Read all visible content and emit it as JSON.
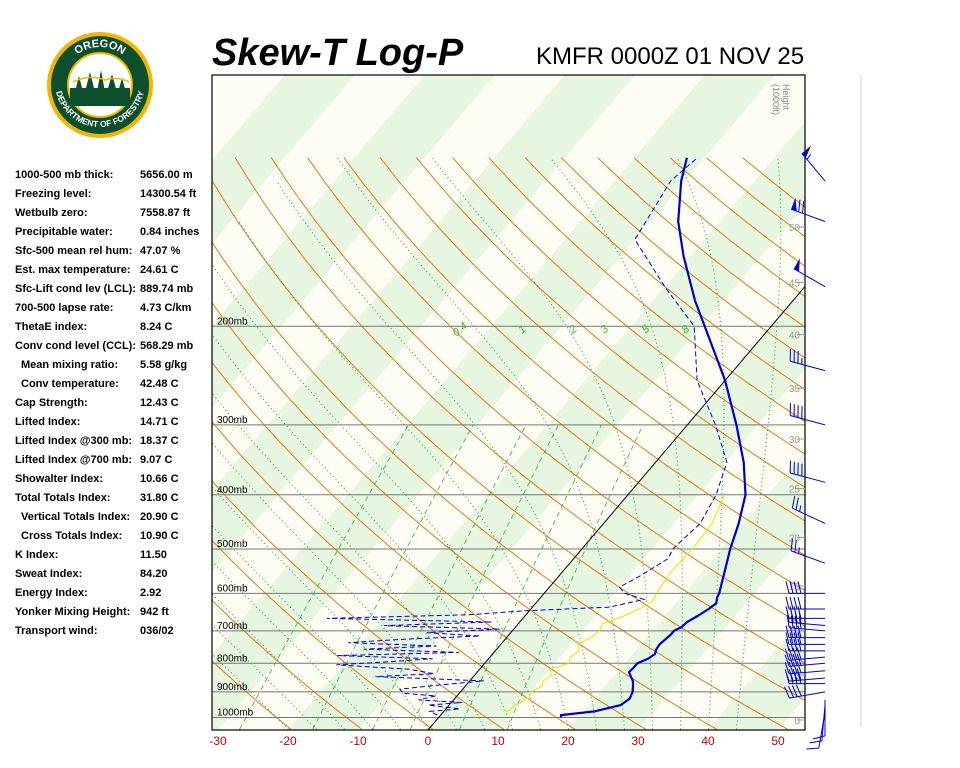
{
  "header": {
    "title": "Skew-T Log-P",
    "station_time": "KMFR 0000Z 01 NOV 25",
    "logo_text": [
      "OREGON",
      "DEPARTMENT OF FORESTRY"
    ]
  },
  "indices": [
    {
      "label": "1000-500 mb thick:",
      "value": "5656.00 m"
    },
    {
      "label": "Freezing level:",
      "value": "14300.54 ft"
    },
    {
      "label": "Wetbulb zero:",
      "value": "7558.87 ft"
    },
    {
      "label": "Precipitable water:",
      "value": "0.84 inches"
    },
    {
      "label": "Sfc-500 mean rel hum:",
      "value": "47.07 %"
    },
    {
      "label": "Est. max temperature:",
      "value": "24.61 C"
    },
    {
      "label": "Sfc-Lift cond lev (LCL):",
      "value": "889.74 mb"
    },
    {
      "label": "700-500 lapse rate:",
      "value": "4.73 C/km"
    },
    {
      "label": "ThetaE index:",
      "value": "8.24 C"
    },
    {
      "label": "Conv cond level (CCL):",
      "value": "568.29 mb"
    },
    {
      "label": "Mean mixing ratio:",
      "value": "5.58 g/kg",
      "indent": true
    },
    {
      "label": "Conv temperature:",
      "value": "42.48 C",
      "indent": true
    },
    {
      "label": "Cap Strength:",
      "value": "12.43 C"
    },
    {
      "label": "Lifted Index:",
      "value": "14.71 C"
    },
    {
      "label": "Lifted Index @300 mb:",
      "value": "18.37 C"
    },
    {
      "label": "Lifted Index @700 mb:",
      "value": "9.07 C"
    },
    {
      "label": "Showalter Index:",
      "value": "10.66 C"
    },
    {
      "label": "Total Totals Index:",
      "value": "31.80 C"
    },
    {
      "label": "Vertical Totals Index:",
      "value": "20.90 C",
      "indent": true
    },
    {
      "label": "Cross Totals Index:",
      "value": "10.90 C",
      "indent": true
    },
    {
      "label": "K Index:",
      "value": "11.50"
    },
    {
      "label": "Sweat Index:",
      "value": "84.20"
    },
    {
      "label": "Energy Index:",
      "value": "2.92"
    },
    {
      "label": "Yonker Mixing Height:",
      "value": "942 ft"
    },
    {
      "label": "Transport wind:",
      "value": "036/02"
    }
  ],
  "chart_data": {
    "type": "line",
    "diagram": "skew-t log-p",
    "title": "Skew-T Log-P",
    "subtitle": "KMFR 0000Z 01 NOV 25",
    "x_ticks": [
      -30,
      -20,
      -10,
      0,
      10,
      20,
      30,
      40,
      50
    ],
    "xlim": [
      -30,
      50
    ],
    "pressure_levels": [
      {
        "p": 200,
        "label": "200mb"
      },
      {
        "p": 300,
        "label": "300mb"
      },
      {
        "p": 400,
        "label": "400mb"
      },
      {
        "p": 500,
        "label": "500mb"
      },
      {
        "p": 600,
        "label": "600mb"
      },
      {
        "p": 700,
        "label": "700mb"
      },
      {
        "p": 800,
        "label": "800mb"
      },
      {
        "p": 900,
        "label": "900mb"
      },
      {
        "p": 1000,
        "label": "1000mb"
      }
    ],
    "height_axis_label": [
      "Height",
      "(1000ft)"
    ],
    "height_ticks": [
      {
        "h": 0,
        "p": 1010
      },
      {
        "h": 5,
        "p": 840
      },
      {
        "h": 10,
        "p": 700
      },
      {
        "h": 15,
        "p": 582
      },
      {
        "h": 20,
        "p": 477
      },
      {
        "h": 25,
        "p": 390
      },
      {
        "h": 30,
        "p": 318
      },
      {
        "h": 35,
        "p": 258
      },
      {
        "h": 40,
        "p": 207
      },
      {
        "h": 45,
        "p": 167
      },
      {
        "h": 50,
        "p": 133
      }
    ],
    "mixing_ratio_labels": [
      {
        "label": "0.4",
        "w": 0.4
      },
      {
        "label": "1",
        "w": 1
      },
      {
        "label": "2",
        "w": 2
      },
      {
        "label": "3",
        "w": 3
      },
      {
        "label": "5",
        "w": 5
      },
      {
        "label": "8",
        "w": 8
      }
    ],
    "series": [
      {
        "kind": "temperature",
        "color": "#0000cc",
        "points": [
          [
            1000,
            17.5
          ],
          [
            990,
            17.2
          ],
          [
            975,
            21.5
          ],
          [
            950,
            24.5
          ],
          [
            925,
            25.0
          ],
          [
            900,
            24.6
          ],
          [
            880,
            24.0
          ],
          [
            860,
            23.3
          ],
          [
            845,
            22.5
          ],
          [
            830,
            21.7
          ],
          [
            815,
            21.8
          ],
          [
            800,
            21.8
          ],
          [
            785,
            22.8
          ],
          [
            770,
            23.2
          ],
          [
            755,
            22.8
          ],
          [
            740,
            22.7
          ],
          [
            725,
            22.9
          ],
          [
            710,
            23.1
          ],
          [
            700,
            23.1
          ],
          [
            690,
            23.7
          ],
          [
            675,
            23.9
          ],
          [
            660,
            24.6
          ],
          [
            640,
            25.4
          ],
          [
            625,
            25.8
          ],
          [
            610,
            25.2
          ],
          [
            600,
            25.0
          ],
          [
            550,
            23.2
          ],
          [
            500,
            21.2
          ],
          [
            450,
            19.3
          ],
          [
            400,
            16.8
          ],
          [
            350,
            12.6
          ],
          [
            300,
            7.0
          ],
          [
            250,
            0.0
          ],
          [
            200,
            -9.5
          ],
          [
            180,
            -14.0
          ],
          [
            150,
            -21.0
          ],
          [
            130,
            -26.0
          ],
          [
            110,
            -30.5
          ],
          [
            100,
            -32.5
          ]
        ]
      },
      {
        "kind": "dewpoint",
        "color": "#0000cc",
        "dashed": true,
        "points": [
          [
            990,
            -0.5
          ],
          [
            975,
            -2.0
          ],
          [
            965,
            2.0
          ],
          [
            950,
            -3.0
          ],
          [
            940,
            1.5
          ],
          [
            930,
            -5.0
          ],
          [
            915,
            -3.0
          ],
          [
            905,
            -8.0
          ],
          [
            890,
            -9.0
          ],
          [
            875,
            -4.0
          ],
          [
            860,
            2.0
          ],
          [
            845,
            -14.0
          ],
          [
            835,
            -6.0
          ],
          [
            820,
            -10.0
          ],
          [
            805,
            -21.0
          ],
          [
            795,
            -14.0
          ],
          [
            785,
            -8.0
          ],
          [
            775,
            -22.0
          ],
          [
            765,
            -5.0
          ],
          [
            755,
            -19.0
          ],
          [
            745,
            -9.0
          ],
          [
            735,
            -22.0
          ],
          [
            725,
            -15.0
          ],
          [
            715,
            -4.0
          ],
          [
            705,
            -12.0
          ],
          [
            695,
            -2.0
          ],
          [
            685,
            -19.0
          ],
          [
            675,
            -4.0
          ],
          [
            665,
            -28.0
          ],
          [
            655,
            -8.0
          ],
          [
            645,
            -1.0
          ],
          [
            635,
            11.0
          ],
          [
            615,
            15.0
          ],
          [
            600,
            11.5
          ],
          [
            585,
            10.0
          ],
          [
            560,
            11.5
          ],
          [
            520,
            13.5
          ],
          [
            500,
            13.0
          ],
          [
            450,
            13.8
          ],
          [
            400,
            12.6
          ],
          [
            350,
            10.2
          ],
          [
            300,
            4.0
          ],
          [
            250,
            -4.0
          ],
          [
            200,
            -11.0
          ],
          [
            170,
            -20.0
          ],
          [
            140,
            -30.0
          ],
          [
            110,
            -32.0
          ],
          [
            100,
            -31.0
          ]
        ]
      },
      {
        "kind": "wetbulb",
        "color": "#e6e600",
        "points": [
          [
            990,
            9.5
          ],
          [
            975,
            9.0
          ],
          [
            950,
            9.5
          ],
          [
            920,
            10.5
          ],
          [
            900,
            10.0
          ],
          [
            880,
            11.0
          ],
          [
            860,
            10.5
          ],
          [
            840,
            11.0
          ],
          [
            820,
            10.0
          ],
          [
            800,
            12.0
          ],
          [
            780,
            11.5
          ],
          [
            760,
            12.0
          ],
          [
            740,
            11.0
          ],
          [
            720,
            12.0
          ],
          [
            700,
            12.5
          ],
          [
            680,
            12.0
          ],
          [
            660,
            14.0
          ],
          [
            640,
            15.5
          ],
          [
            620,
            16.5
          ],
          [
            600,
            16.0
          ],
          [
            550,
            15.5
          ],
          [
            500,
            15.8
          ],
          [
            450,
            15.5
          ],
          [
            400,
            13.8
          ]
        ]
      }
    ],
    "winds": [
      {
        "p": 980,
        "dir": 190,
        "kts": 10
      },
      {
        "p": 950,
        "dir": 185,
        "kts": 10
      },
      {
        "p": 930,
        "dir": 180,
        "kts": 10
      },
      {
        "p": 900,
        "dir": 260,
        "kts": 40
      },
      {
        "p": 870,
        "dir": 270,
        "kts": 40
      },
      {
        "p": 850,
        "dir": 265,
        "kts": 40
      },
      {
        "p": 825,
        "dir": 265,
        "kts": 40
      },
      {
        "p": 800,
        "dir": 265,
        "kts": 40
      },
      {
        "p": 780,
        "dir": 265,
        "kts": 40
      },
      {
        "p": 760,
        "dir": 270,
        "kts": 40
      },
      {
        "p": 740,
        "dir": 270,
        "kts": 40
      },
      {
        "p": 720,
        "dir": 270,
        "kts": 40
      },
      {
        "p": 700,
        "dir": 275,
        "kts": 40
      },
      {
        "p": 685,
        "dir": 275,
        "kts": 40
      },
      {
        "p": 665,
        "dir": 270,
        "kts": 40
      },
      {
        "p": 640,
        "dir": 270,
        "kts": 40
      },
      {
        "p": 600,
        "dir": 270,
        "kts": 40
      },
      {
        "p": 530,
        "dir": 290,
        "kts": 25
      },
      {
        "p": 450,
        "dir": 295,
        "kts": 25
      },
      {
        "p": 380,
        "dir": 285,
        "kts": 40
      },
      {
        "p": 300,
        "dir": 285,
        "kts": 40
      },
      {
        "p": 240,
        "dir": 285,
        "kts": 35
      },
      {
        "p": 170,
        "dir": 300,
        "kts": 50
      },
      {
        "p": 130,
        "dir": 290,
        "kts": 70
      },
      {
        "p": 110,
        "dir": 320,
        "kts": 55
      }
    ]
  }
}
